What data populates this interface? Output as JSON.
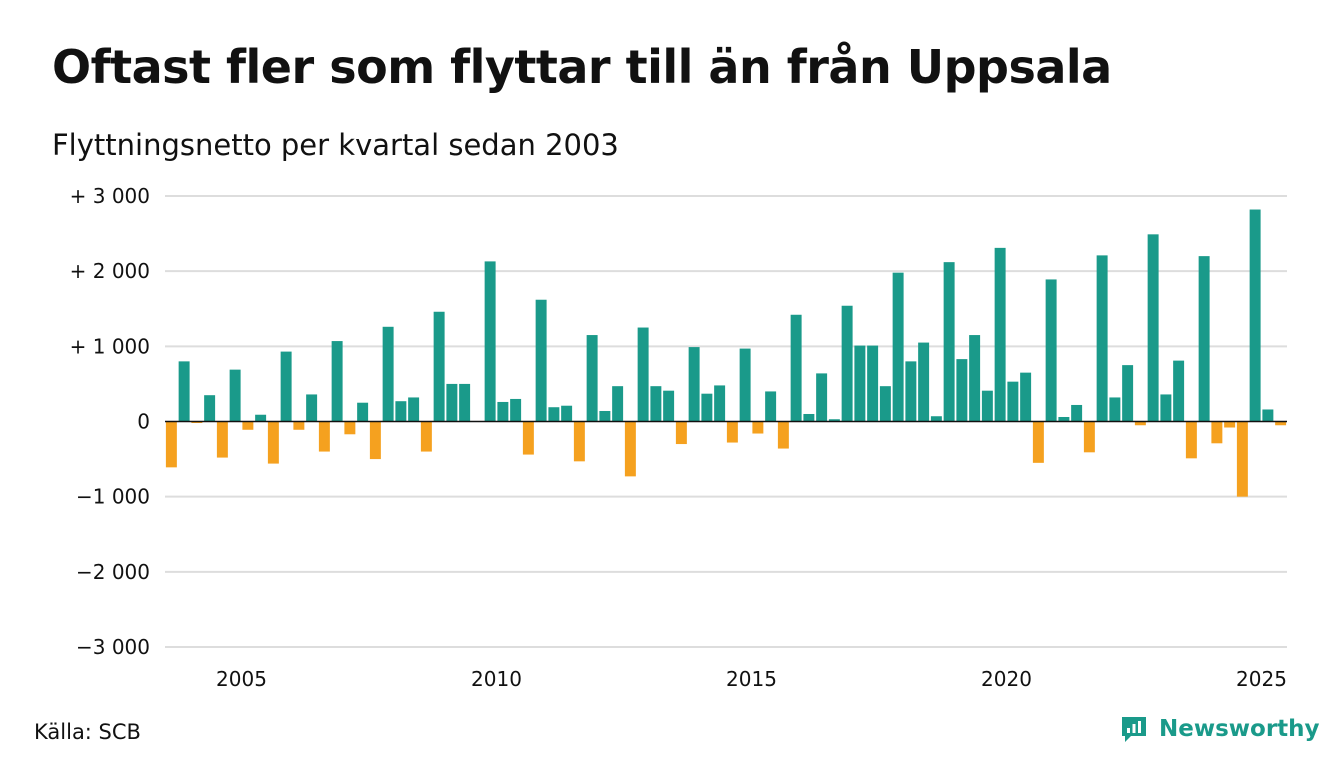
{
  "title": "Oftast fler som flyttar till än från Uppsala",
  "subtitle": "Flyttningsnetto per kvartal sedan 2003",
  "source": "Källa: SCB",
  "brand": {
    "name": "Newsworthy",
    "icon": "newsworthy-logo-icon"
  },
  "colors": {
    "positive": "#1a9a8a",
    "negative": "#f5a11f",
    "grid": "#dddddd",
    "axis": "#111111"
  },
  "chart_data": {
    "type": "bar",
    "title": "Oftast fler som flyttar till än från Uppsala",
    "subtitle": "Flyttningsnetto per kvartal sedan 2003",
    "xlabel": "",
    "ylabel": "",
    "ylim": [
      -3000,
      3000
    ],
    "y_ticks": [
      {
        "value": 3000,
        "label": "+ 3 000"
      },
      {
        "value": 2000,
        "label": "+ 2 000"
      },
      {
        "value": 1000,
        "label": "+ 1 000"
      },
      {
        "value": 0,
        "label": "0"
      },
      {
        "value": -1000,
        "label": "−1 000"
      },
      {
        "value": -2000,
        "label": "−2 000"
      },
      {
        "value": -3000,
        "label": "−3 000"
      }
    ],
    "x_ticks": [
      "2005",
      "2010",
      "2015",
      "2020",
      "2025"
    ],
    "grid": true,
    "legend": "none",
    "categories": [
      "2003 K3",
      "2003 K4",
      "2004 K1",
      "2004 K2",
      "2004 K3",
      "2004 K4",
      "2005 K1",
      "2005 K2",
      "2005 K3",
      "2005 K4",
      "2006 K1",
      "2006 K2",
      "2006 K3",
      "2006 K4",
      "2007 K1",
      "2007 K2",
      "2007 K3",
      "2007 K4",
      "2008 K1",
      "2008 K2",
      "2008 K3",
      "2008 K4",
      "2009 K1",
      "2009 K2",
      "2009 K3",
      "2009 K4",
      "2010 K1",
      "2010 K2",
      "2010 K3",
      "2010 K4",
      "2011 K1",
      "2011 K2",
      "2011 K3",
      "2011 K4",
      "2012 K1",
      "2012 K2",
      "2012 K3",
      "2012 K4",
      "2013 K1",
      "2013 K2",
      "2013 K3",
      "2013 K4",
      "2014 K1",
      "2014 K2",
      "2014 K3",
      "2014 K4",
      "2015 K1",
      "2015 K2",
      "2015 K3",
      "2015 K4",
      "2016 K1",
      "2016 K2",
      "2016 K3",
      "2016 K4",
      "2017 K1",
      "2017 K2",
      "2017 K3",
      "2017 K4",
      "2018 K1",
      "2018 K2",
      "2018 K3",
      "2018 K4",
      "2019 K1",
      "2019 K2",
      "2019 K3",
      "2019 K4",
      "2020 K1",
      "2020 K2",
      "2020 K3",
      "2020 K4",
      "2021 K1",
      "2021 K2",
      "2021 K3",
      "2021 K4",
      "2022 K1",
      "2022 K2",
      "2022 K3",
      "2022 K4",
      "2023 K1",
      "2023 K2",
      "2023 K3",
      "2023 K4",
      "2024 K1",
      "2024 K2",
      "2024 K3",
      "2024 K4",
      "2025 K1",
      "2025 K2"
    ],
    "values": [
      -610,
      800,
      -20,
      350,
      -480,
      690,
      -110,
      90,
      -560,
      930,
      -110,
      360,
      -400,
      1070,
      -170,
      250,
      -500,
      1260,
      270,
      320,
      -400,
      1460,
      500,
      500,
      0,
      2130,
      260,
      300,
      -440,
      1620,
      190,
      210,
      -530,
      1150,
      140,
      470,
      -730,
      1250,
      470,
      410,
      -300,
      990,
      370,
      480,
      -280,
      970,
      -160,
      400,
      -360,
      1420,
      100,
      640,
      30,
      1540,
      1010,
      1010,
      470,
      1980,
      800,
      1050,
      70,
      2120,
      830,
      1150,
      410,
      2310,
      530,
      650,
      -550,
      1890,
      60,
      220,
      -410,
      2210,
      320,
      750,
      -50,
      2490,
      360,
      810,
      -490,
      2200,
      -290,
      -80,
      -1000,
      2820,
      160,
      -50
    ]
  }
}
